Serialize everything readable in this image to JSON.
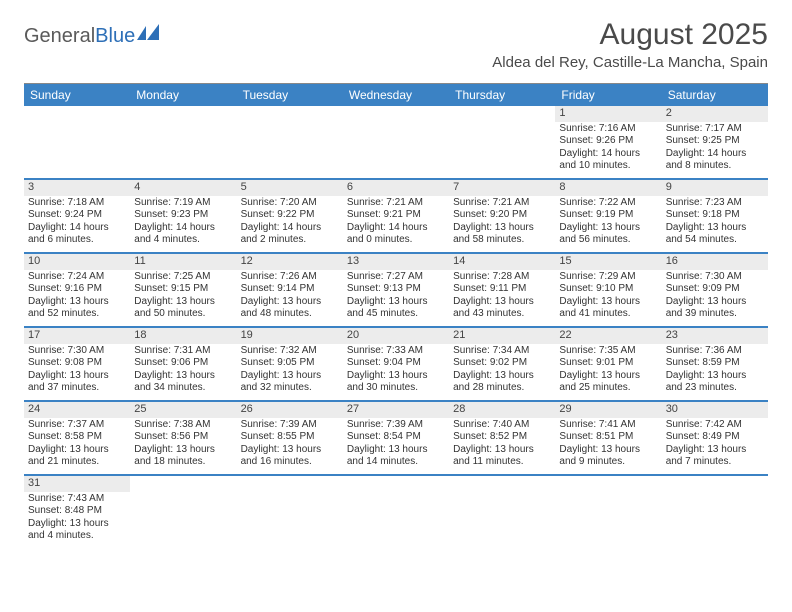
{
  "logo": {
    "text1": "General",
    "text2": "Blue"
  },
  "title": "August 2025",
  "location": "Aldea del Rey, Castille-La Mancha, Spain",
  "colors": {
    "header_bg": "#3b82c4",
    "header_text": "#ffffff",
    "daynum_bg": "#ececec",
    "row_divider": "#3b82c4",
    "logo_gray": "#5a5a5a",
    "logo_blue": "#2d6fb7"
  },
  "weekdays": [
    "Sunday",
    "Monday",
    "Tuesday",
    "Wednesday",
    "Thursday",
    "Friday",
    "Saturday"
  ],
  "weeks": [
    [
      null,
      null,
      null,
      null,
      null,
      {
        "n": "1",
        "sr": "7:16 AM",
        "ss": "9:26 PM",
        "dl": "14 hours and 10 minutes."
      },
      {
        "n": "2",
        "sr": "7:17 AM",
        "ss": "9:25 PM",
        "dl": "14 hours and 8 minutes."
      }
    ],
    [
      {
        "n": "3",
        "sr": "7:18 AM",
        "ss": "9:24 PM",
        "dl": "14 hours and 6 minutes."
      },
      {
        "n": "4",
        "sr": "7:19 AM",
        "ss": "9:23 PM",
        "dl": "14 hours and 4 minutes."
      },
      {
        "n": "5",
        "sr": "7:20 AM",
        "ss": "9:22 PM",
        "dl": "14 hours and 2 minutes."
      },
      {
        "n": "6",
        "sr": "7:21 AM",
        "ss": "9:21 PM",
        "dl": "14 hours and 0 minutes."
      },
      {
        "n": "7",
        "sr": "7:21 AM",
        "ss": "9:20 PM",
        "dl": "13 hours and 58 minutes."
      },
      {
        "n": "8",
        "sr": "7:22 AM",
        "ss": "9:19 PM",
        "dl": "13 hours and 56 minutes."
      },
      {
        "n": "9",
        "sr": "7:23 AM",
        "ss": "9:18 PM",
        "dl": "13 hours and 54 minutes."
      }
    ],
    [
      {
        "n": "10",
        "sr": "7:24 AM",
        "ss": "9:16 PM",
        "dl": "13 hours and 52 minutes."
      },
      {
        "n": "11",
        "sr": "7:25 AM",
        "ss": "9:15 PM",
        "dl": "13 hours and 50 minutes."
      },
      {
        "n": "12",
        "sr": "7:26 AM",
        "ss": "9:14 PM",
        "dl": "13 hours and 48 minutes."
      },
      {
        "n": "13",
        "sr": "7:27 AM",
        "ss": "9:13 PM",
        "dl": "13 hours and 45 minutes."
      },
      {
        "n": "14",
        "sr": "7:28 AM",
        "ss": "9:11 PM",
        "dl": "13 hours and 43 minutes."
      },
      {
        "n": "15",
        "sr": "7:29 AM",
        "ss": "9:10 PM",
        "dl": "13 hours and 41 minutes."
      },
      {
        "n": "16",
        "sr": "7:30 AM",
        "ss": "9:09 PM",
        "dl": "13 hours and 39 minutes."
      }
    ],
    [
      {
        "n": "17",
        "sr": "7:30 AM",
        "ss": "9:08 PM",
        "dl": "13 hours and 37 minutes."
      },
      {
        "n": "18",
        "sr": "7:31 AM",
        "ss": "9:06 PM",
        "dl": "13 hours and 34 minutes."
      },
      {
        "n": "19",
        "sr": "7:32 AM",
        "ss": "9:05 PM",
        "dl": "13 hours and 32 minutes."
      },
      {
        "n": "20",
        "sr": "7:33 AM",
        "ss": "9:04 PM",
        "dl": "13 hours and 30 minutes."
      },
      {
        "n": "21",
        "sr": "7:34 AM",
        "ss": "9:02 PM",
        "dl": "13 hours and 28 minutes."
      },
      {
        "n": "22",
        "sr": "7:35 AM",
        "ss": "9:01 PM",
        "dl": "13 hours and 25 minutes."
      },
      {
        "n": "23",
        "sr": "7:36 AM",
        "ss": "8:59 PM",
        "dl": "13 hours and 23 minutes."
      }
    ],
    [
      {
        "n": "24",
        "sr": "7:37 AM",
        "ss": "8:58 PM",
        "dl": "13 hours and 21 minutes."
      },
      {
        "n": "25",
        "sr": "7:38 AM",
        "ss": "8:56 PM",
        "dl": "13 hours and 18 minutes."
      },
      {
        "n": "26",
        "sr": "7:39 AM",
        "ss": "8:55 PM",
        "dl": "13 hours and 16 minutes."
      },
      {
        "n": "27",
        "sr": "7:39 AM",
        "ss": "8:54 PM",
        "dl": "13 hours and 14 minutes."
      },
      {
        "n": "28",
        "sr": "7:40 AM",
        "ss": "8:52 PM",
        "dl": "13 hours and 11 minutes."
      },
      {
        "n": "29",
        "sr": "7:41 AM",
        "ss": "8:51 PM",
        "dl": "13 hours and 9 minutes."
      },
      {
        "n": "30",
        "sr": "7:42 AM",
        "ss": "8:49 PM",
        "dl": "13 hours and 7 minutes."
      }
    ],
    [
      {
        "n": "31",
        "sr": "7:43 AM",
        "ss": "8:48 PM",
        "dl": "13 hours and 4 minutes."
      },
      null,
      null,
      null,
      null,
      null,
      null
    ]
  ],
  "labels": {
    "sunrise": "Sunrise: ",
    "sunset": "Sunset: ",
    "daylight": "Daylight: "
  }
}
